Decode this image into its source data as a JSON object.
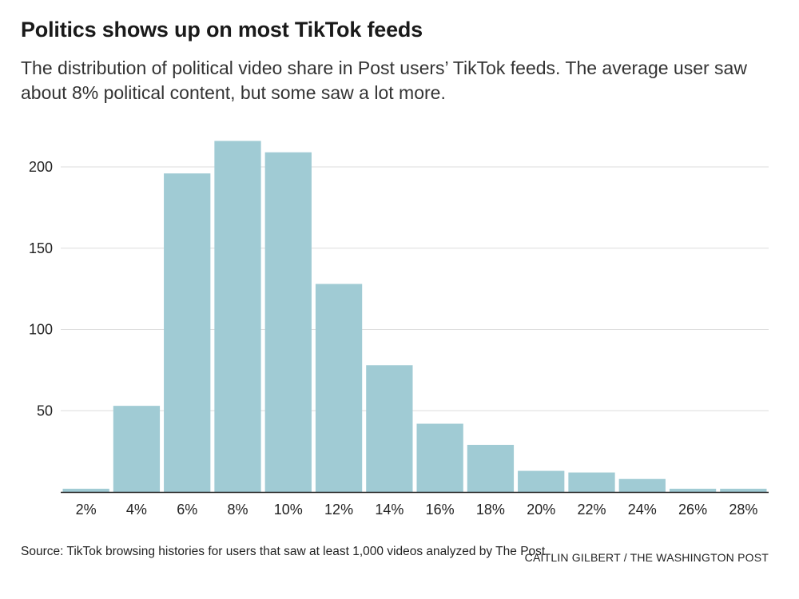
{
  "title": "Politics shows up on most TikTok feeds",
  "subtitle": "The distribution of political video share in Post users’ TikTok feeds. The average user saw about 8% political content, but some saw a lot more.",
  "source": "Source: TikTok browsing histories for users that saw at least 1,000 videos analyzed by The Post",
  "credit": "CAITLIN GILBERT / THE WASHINGTON POST",
  "colors": {
    "bar": "#a0cbd4",
    "grid": "#dddddd",
    "axis": "#222222"
  },
  "chart_data": {
    "type": "bar",
    "categories": [
      "2%",
      "4%",
      "6%",
      "8%",
      "10%",
      "12%",
      "14%",
      "16%",
      "18%",
      "20%",
      "22%",
      "24%",
      "26%",
      "28%"
    ],
    "values": [
      2,
      53,
      196,
      216,
      209,
      128,
      78,
      42,
      29,
      13,
      12,
      8,
      2,
      2
    ],
    "yticks": [
      50,
      100,
      150,
      200
    ],
    "ylim": [
      0,
      225
    ],
    "grid": true,
    "xlabel": "",
    "ylabel": ""
  }
}
